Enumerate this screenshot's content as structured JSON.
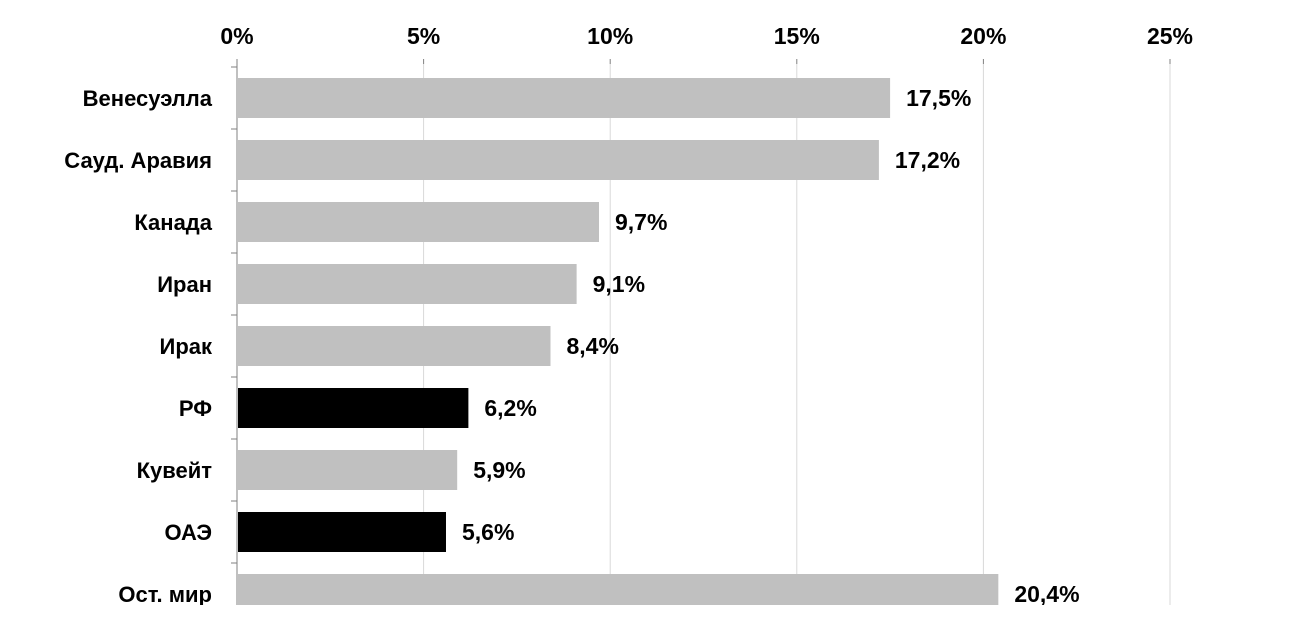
{
  "chart_data": {
    "type": "bar",
    "orientation": "horizontal",
    "categories": [
      "Венесуэлла",
      "Сауд. Аравия",
      "Канада",
      "Иран",
      "Ирак",
      "РФ",
      "Кувейт",
      "ОАЭ",
      "Ост. мир"
    ],
    "values": [
      17.5,
      17.2,
      9.7,
      9.1,
      8.4,
      6.2,
      5.9,
      5.6,
      20.4
    ],
    "value_labels": [
      "17,5%",
      "17,2%",
      "9,7%",
      "9,1%",
      "8,4%",
      "6,2%",
      "5,9%",
      "5,6%",
      "20,4%"
    ],
    "xticks": [
      "0%",
      "5%",
      "10%",
      "15%",
      "20%",
      "25%"
    ],
    "xlim": [
      0,
      25
    ],
    "x_axis_position": "top",
    "grid": true,
    "title": "",
    "xlabel": "",
    "ylabel": "",
    "colors": {
      "default_bar": "#c0c0c0",
      "highlight_bar": "#000000",
      "gridline": "#d9d9d9",
      "axis": "#808080"
    },
    "highlighted": [
      "РФ",
      "ОАЭ"
    ]
  }
}
